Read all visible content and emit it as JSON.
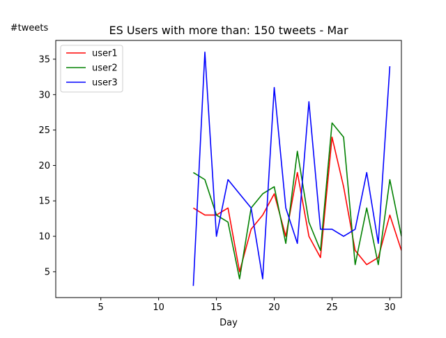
{
  "chart_data": {
    "type": "line",
    "title": "ES Users with more than: 150 tweets - Mar",
    "xlabel": "Day",
    "ylabel": "#tweets",
    "xlim": [
      1.1,
      31
    ],
    "ylim": [
      1.35,
      37.65
    ],
    "xticks": [
      5,
      10,
      15,
      20,
      25,
      30
    ],
    "yticks": [
      5,
      10,
      15,
      20,
      25,
      30,
      35
    ],
    "grid": false,
    "legend_position": "top-left",
    "x": [
      13,
      14,
      15,
      16,
      17,
      18,
      19,
      20,
      21,
      22,
      23,
      24,
      25,
      26,
      27,
      28,
      29,
      30,
      31
    ],
    "series": [
      {
        "name": "user1",
        "color": "#ff0000",
        "values": [
          14,
          13,
          13,
          14,
          5,
          11,
          13,
          16,
          10,
          19,
          10,
          7,
          24,
          17,
          8,
          6,
          7,
          13,
          8
        ]
      },
      {
        "name": "user2",
        "color": "#008000",
        "values": [
          19,
          18,
          13,
          12,
          4,
          14,
          16,
          17,
          9,
          22,
          12,
          8,
          26,
          24,
          6,
          14,
          6,
          18,
          10
        ]
      },
      {
        "name": "user3",
        "color": "#0000ff",
        "values": [
          3,
          36,
          10,
          18,
          16,
          14,
          4,
          31,
          14,
          9,
          29,
          11,
          11,
          10,
          11,
          19,
          9,
          34,
          null
        ]
      }
    ]
  }
}
